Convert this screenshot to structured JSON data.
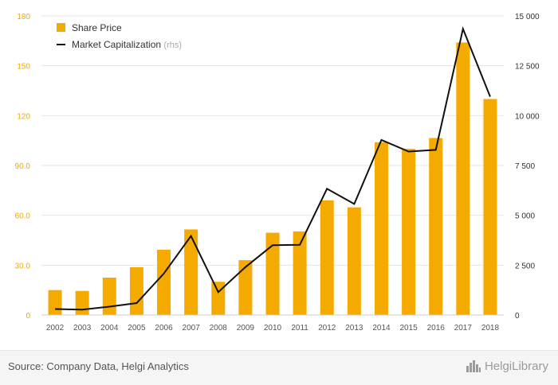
{
  "chart_data": {
    "type": "bar+line",
    "categories": [
      "2002",
      "2003",
      "2004",
      "2005",
      "2006",
      "2007",
      "2008",
      "2009",
      "2010",
      "2011",
      "2012",
      "2013",
      "2014",
      "2015",
      "2016",
      "2017",
      "2018"
    ],
    "series": [
      {
        "name": "Share Price",
        "type": "bar",
        "axis": "left",
        "values": [
          15.0,
          14.5,
          22.5,
          28.8,
          39.3,
          51.5,
          20.0,
          33.0,
          49.5,
          50.3,
          69.0,
          64.8,
          104.0,
          100.0,
          106.5,
          164.0,
          130.0
        ]
      },
      {
        "name": "Market Capitalization",
        "name_suffix": "(rhs)",
        "type": "line",
        "axis": "right",
        "values": [
          300,
          270,
          420,
          600,
          2080,
          3960,
          1150,
          2400,
          3500,
          3520,
          6330,
          5570,
          8780,
          8200,
          8280,
          14350,
          10950
        ]
      }
    ],
    "y_left": {
      "min": 0,
      "max": 180,
      "ticks": [
        "0",
        "30.0",
        "60.0",
        "90.0",
        "120",
        "150",
        "180"
      ]
    },
    "y_right": {
      "min": 0,
      "max": 15000,
      "ticks": [
        "0",
        "2 500",
        "5 000",
        "7 500",
        "10 000",
        "12 500",
        "15 000"
      ]
    },
    "legend": {
      "placement": "top-left"
    },
    "grid": true,
    "colors": {
      "bar": "#f5aa00",
      "line": "#111111",
      "grid": "#e5e5e5",
      "left_ticks": "#f5a800"
    }
  },
  "footer": {
    "source": "Source: Company Data, Helgi Analytics",
    "brand": "HelgiLibrary",
    "brand_icon": "helgi-skyline-icon"
  }
}
